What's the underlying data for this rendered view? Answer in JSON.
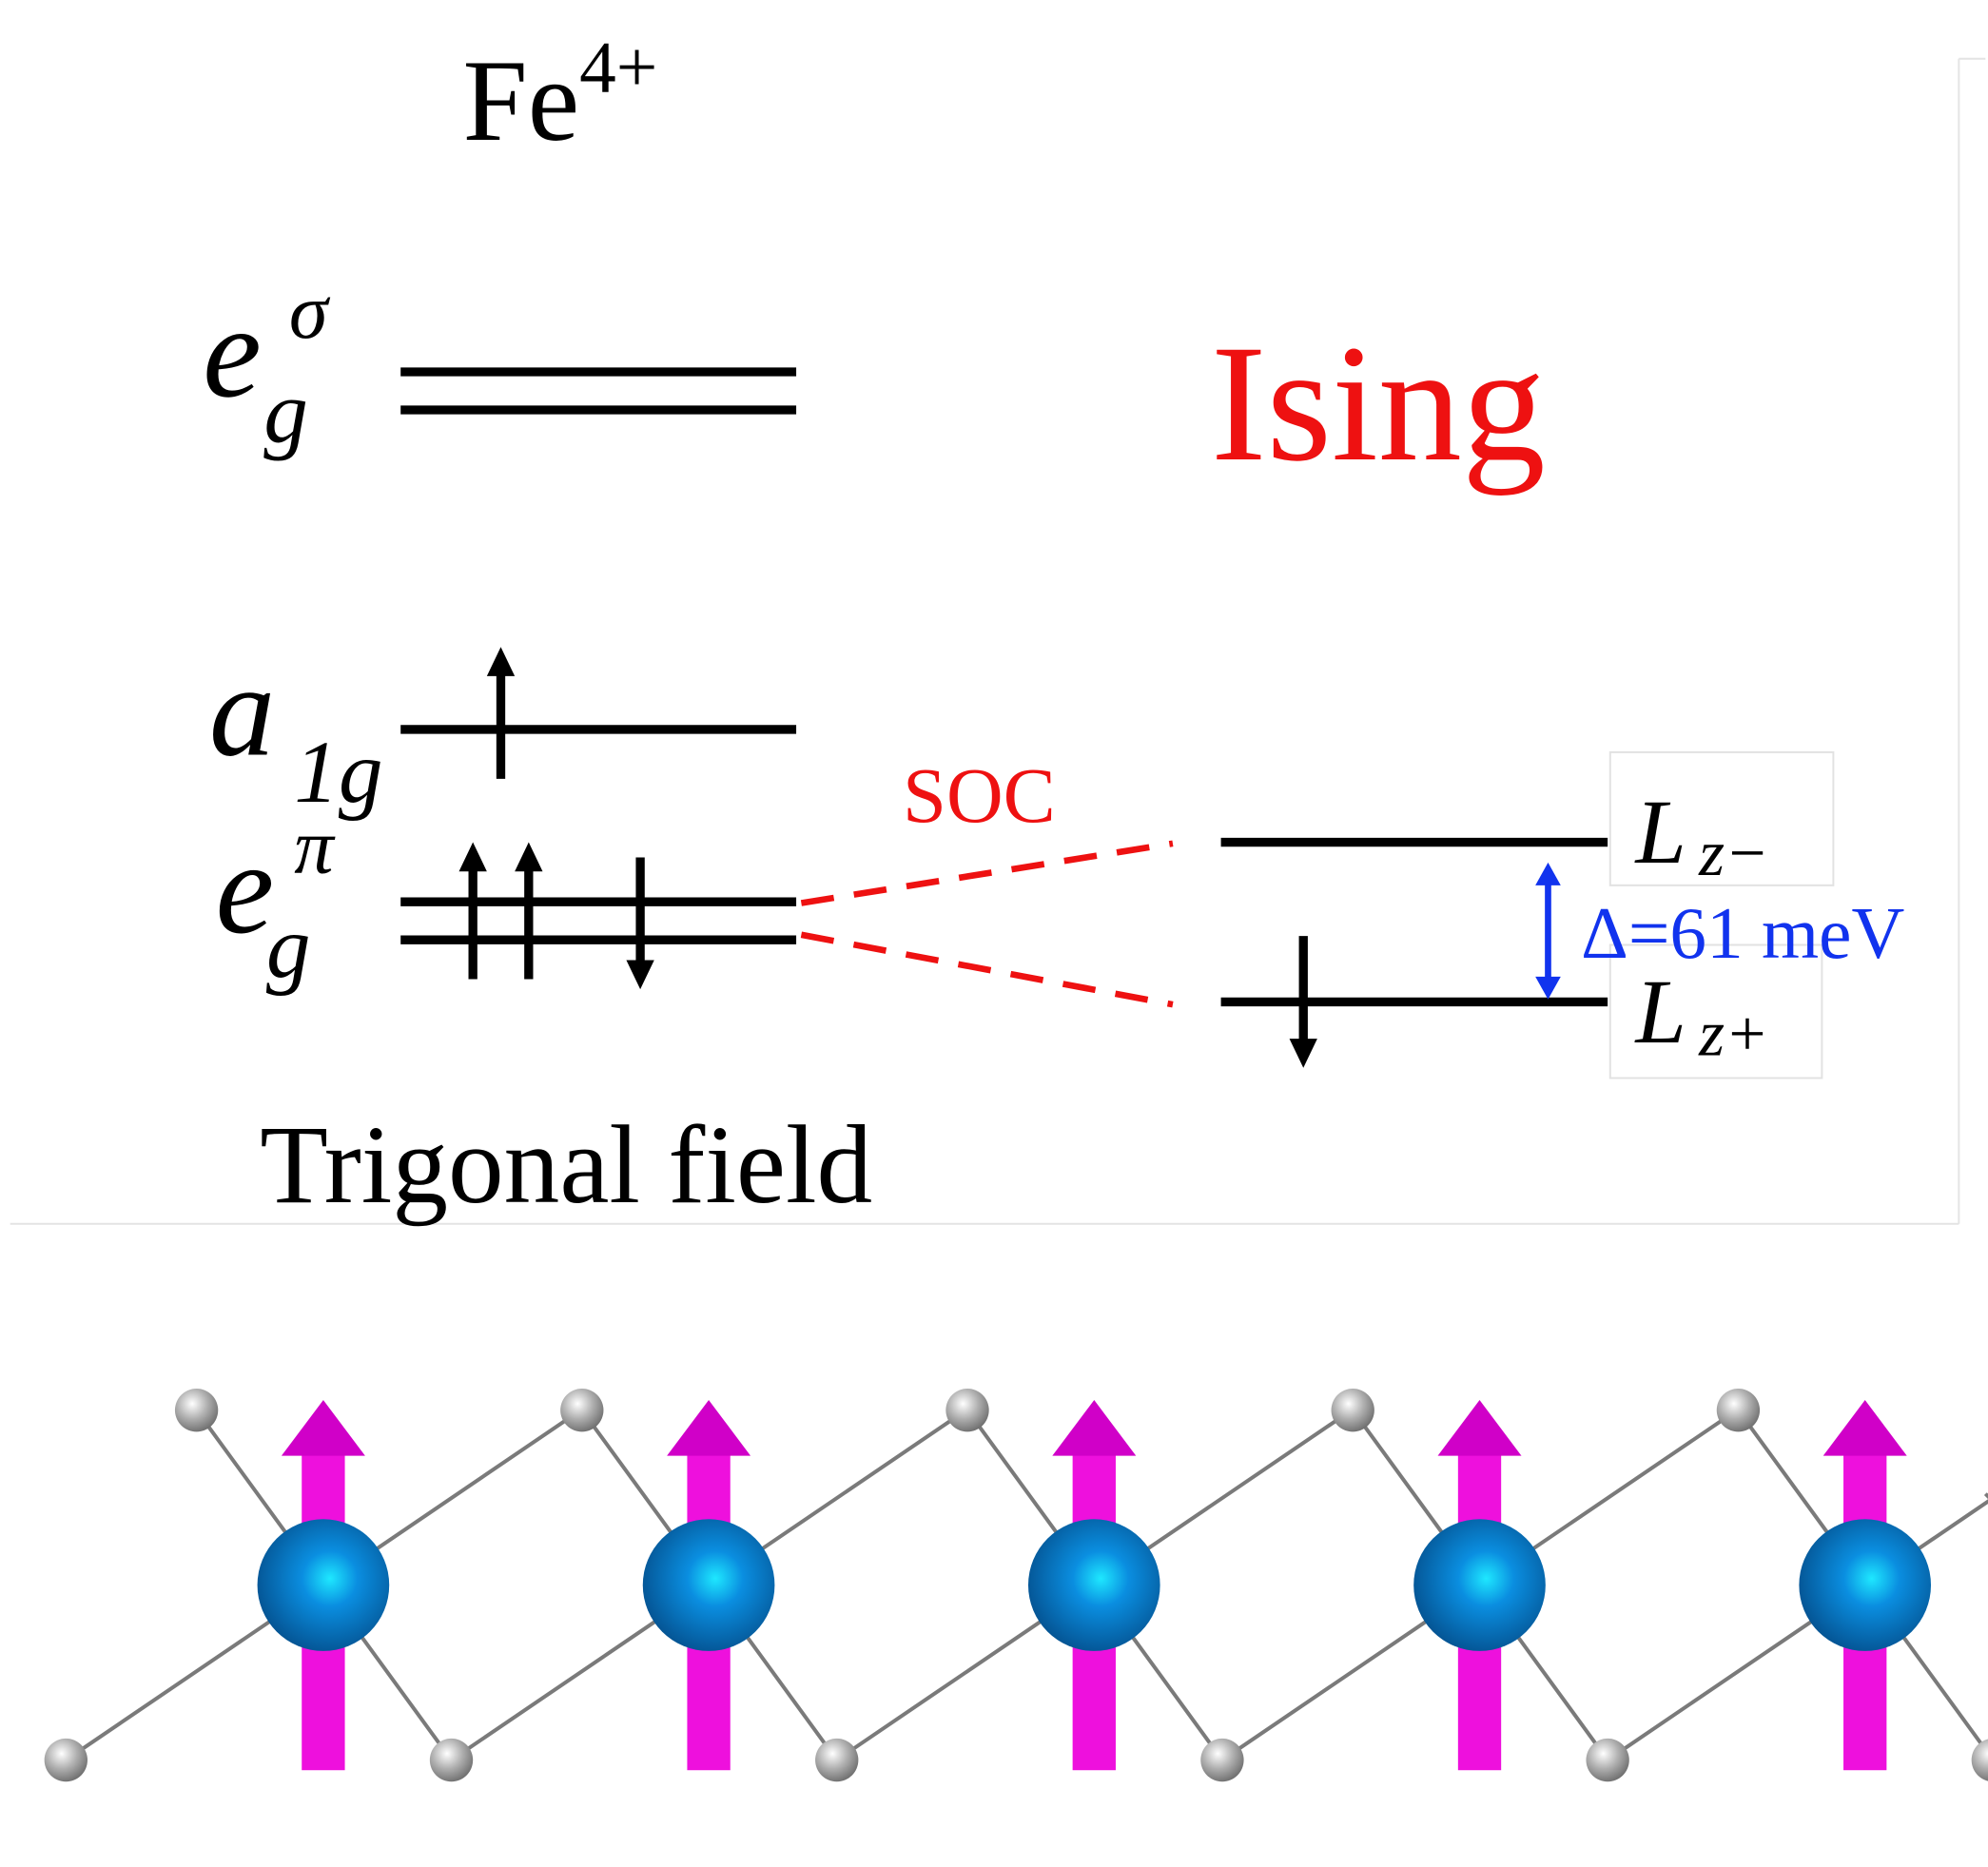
{
  "title": {
    "base": "Fe",
    "sup": "4+"
  },
  "levels": [
    {
      "symbol": "e",
      "sup": "σ",
      "sub": "g"
    },
    {
      "symbol": "a",
      "sub": "1g"
    },
    {
      "symbol": "e",
      "sup": "π",
      "sub": "g"
    }
  ],
  "soc_label": "SOC",
  "model_label": "Ising",
  "split_levels": [
    {
      "symbol": "L",
      "sub": "z−"
    },
    {
      "symbol": "L",
      "sub": "z+"
    }
  ],
  "gap_label": "Δ=61 meV",
  "caption": "Trigonal field"
}
